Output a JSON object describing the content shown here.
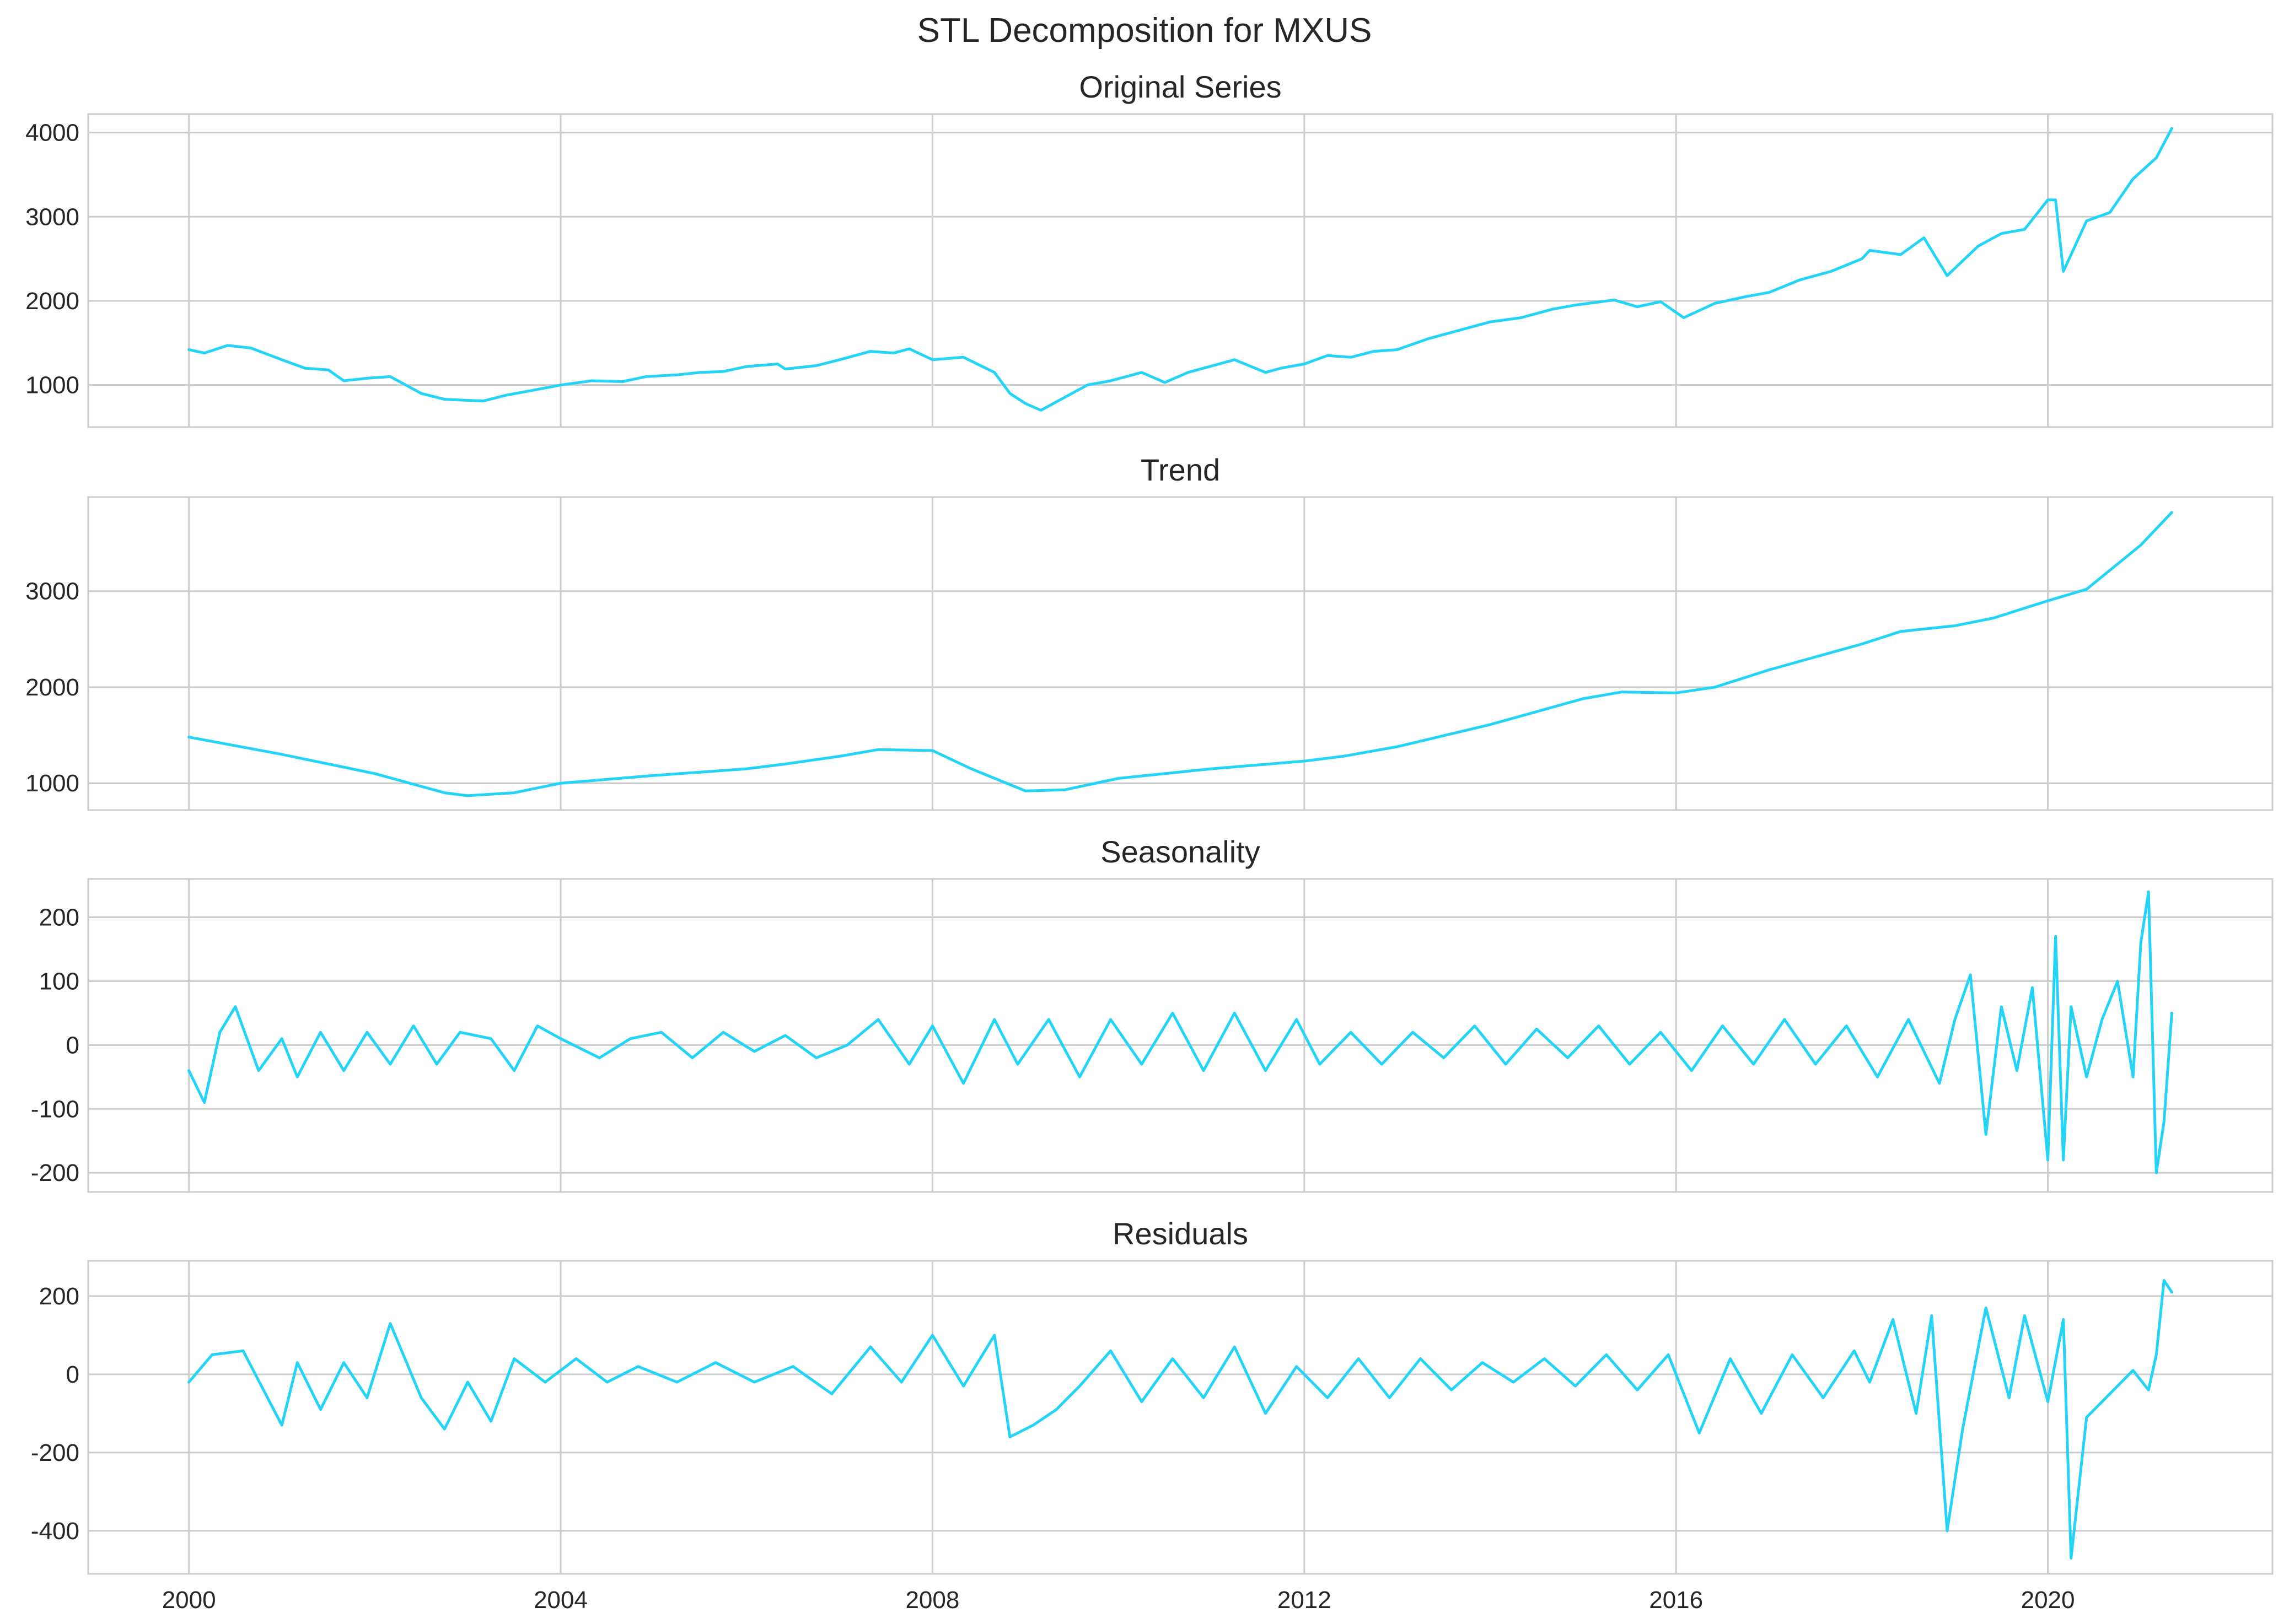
{
  "chart_data": {
    "type": "line",
    "title": "STL Decomposition for MXUS",
    "x_range": [
      "1998-12",
      "2022-06"
    ],
    "x_ticks": [
      "2000",
      "2004",
      "2008",
      "2012",
      "2016",
      "2020"
    ],
    "grid": true,
    "color": "#24d4f7",
    "panels": [
      {
        "name": "original",
        "title": "Original Series",
        "ylim": [
          500,
          4220
        ],
        "yticks": [
          1000,
          2000,
          3000,
          4000
        ],
        "x": [
          "2000-01",
          "2000-03",
          "2000-06",
          "2000-09",
          "2001-01",
          "2001-04",
          "2001-07",
          "2001-09",
          "2001-12",
          "2002-03",
          "2002-07",
          "2002-10",
          "2003-03",
          "2003-06",
          "2003-09",
          "2004-01",
          "2004-05",
          "2004-09",
          "2004-12",
          "2005-04",
          "2005-07",
          "2005-10",
          "2006-01",
          "2006-05",
          "2006-06",
          "2006-10",
          "2007-01",
          "2007-05",
          "2007-08",
          "2007-10",
          "2008-01",
          "2008-05",
          "2008-09",
          "2008-11",
          "2009-01",
          "2009-03",
          "2009-06",
          "2009-09",
          "2009-12",
          "2010-04",
          "2010-07",
          "2010-10",
          "2011-04",
          "2011-08",
          "2011-10",
          "2012-01",
          "2012-04",
          "2012-07",
          "2012-10",
          "2013-01",
          "2013-05",
          "2013-09",
          "2014-01",
          "2014-05",
          "2014-09",
          "2014-12",
          "2015-05",
          "2015-08",
          "2015-11",
          "2016-02",
          "2016-06",
          "2016-10",
          "2017-01",
          "2017-05",
          "2017-09",
          "2018-01",
          "2018-02",
          "2018-06",
          "2018-09",
          "2018-12",
          "2019-04",
          "2019-07",
          "2019-10",
          "2020-01",
          "2020-02",
          "2020-03",
          "2020-06",
          "2020-09",
          "2020-12",
          "2021-03",
          "2021-05"
        ],
        "y": [
          1420,
          1380,
          1470,
          1440,
          1300,
          1200,
          1180,
          1050,
          1080,
          1100,
          900,
          830,
          810,
          880,
          930,
          1000,
          1050,
          1040,
          1100,
          1120,
          1150,
          1160,
          1220,
          1250,
          1190,
          1230,
          1300,
          1400,
          1380,
          1430,
          1300,
          1330,
          1150,
          900,
          780,
          700,
          850,
          1000,
          1050,
          1150,
          1030,
          1150,
          1300,
          1150,
          1200,
          1250,
          1350,
          1330,
          1400,
          1420,
          1550,
          1650,
          1750,
          1800,
          1900,
          1950,
          2010,
          1930,
          1990,
          1800,
          1970,
          2050,
          2100,
          2250,
          2350,
          2500,
          2600,
          2550,
          2750,
          2300,
          2650,
          2800,
          2850,
          3200,
          3200,
          2350,
          2950,
          3050,
          3450,
          3700,
          4050
        ]
      },
      {
        "name": "trend",
        "title": "Trend",
        "ylim": [
          720,
          3980
        ],
        "yticks": [
          1000,
          2000,
          3000
        ],
        "x": [
          "2000-01",
          "2001-01",
          "2002-01",
          "2002-10",
          "2003-01",
          "2003-07",
          "2004-01",
          "2005-01",
          "2006-01",
          "2006-06",
          "2007-01",
          "2007-06",
          "2008-01",
          "2008-06",
          "2009-01",
          "2009-06",
          "2010-01",
          "2011-01",
          "2012-01",
          "2012-06",
          "2013-01",
          "2014-01",
          "2015-01",
          "2015-06",
          "2016-01",
          "2016-06",
          "2017-01",
          "2018-01",
          "2018-06",
          "2019-01",
          "2019-06",
          "2020-01",
          "2020-06",
          "2021-01",
          "2021-05"
        ],
        "y": [
          1480,
          1300,
          1100,
          900,
          870,
          900,
          1000,
          1080,
          1150,
          1200,
          1280,
          1350,
          1340,
          1150,
          920,
          930,
          1050,
          1150,
          1230,
          1280,
          1380,
          1610,
          1880,
          1950,
          1940,
          2000,
          2180,
          2450,
          2580,
          2640,
          2720,
          2900,
          3020,
          3480,
          3820
        ]
      },
      {
        "name": "seasonality",
        "title": "Seasonality",
        "ylim": [
          -230,
          260
        ],
        "yticks": [
          -200,
          -100,
          0,
          100,
          200
        ],
        "x": [
          "2000-01",
          "2000-03",
          "2000-05",
          "2000-07",
          "2000-10",
          "2001-01",
          "2001-03",
          "2001-06",
          "2001-09",
          "2001-12",
          "2002-03",
          "2002-06",
          "2002-09",
          "2002-12",
          "2003-04",
          "2003-07",
          "2003-10",
          "2004-01",
          "2004-06",
          "2004-10",
          "2005-02",
          "2005-06",
          "2005-10",
          "2006-02",
          "2006-06",
          "2006-10",
          "2007-02",
          "2007-06",
          "2007-10",
          "2008-01",
          "2008-05",
          "2008-09",
          "2008-12",
          "2009-04",
          "2009-08",
          "2009-12",
          "2010-04",
          "2010-08",
          "2010-12",
          "2011-04",
          "2011-08",
          "2011-12",
          "2012-03",
          "2012-07",
          "2012-11",
          "2013-03",
          "2013-07",
          "2013-11",
          "2014-03",
          "2014-07",
          "2014-11",
          "2015-03",
          "2015-07",
          "2015-11",
          "2016-03",
          "2016-07",
          "2016-11",
          "2017-03",
          "2017-07",
          "2017-11",
          "2018-03",
          "2018-07",
          "2018-11",
          "2019-01",
          "2019-03",
          "2019-05",
          "2019-07",
          "2019-09",
          "2019-11",
          "2020-01",
          "2020-02",
          "2020-03",
          "2020-04",
          "2020-06",
          "2020-08",
          "2020-10",
          "2020-12",
          "2021-01",
          "2021-02",
          "2021-03",
          "2021-04",
          "2021-05"
        ],
        "y": [
          -40,
          -90,
          20,
          60,
          -40,
          10,
          -50,
          20,
          -40,
          20,
          -30,
          30,
          -30,
          20,
          10,
          -40,
          30,
          10,
          -20,
          10,
          20,
          -20,
          20,
          -10,
          15,
          -20,
          0,
          40,
          -30,
          30,
          -60,
          40,
          -30,
          40,
          -50,
          40,
          -30,
          50,
          -40,
          50,
          -40,
          40,
          -30,
          20,
          -30,
          20,
          -20,
          30,
          -30,
          25,
          -20,
          30,
          -30,
          20,
          -40,
          30,
          -30,
          40,
          -30,
          30,
          -50,
          40,
          -60,
          40,
          110,
          -140,
          60,
          -40,
          90,
          -180,
          170,
          -180,
          60,
          -50,
          40,
          100,
          -50,
          160,
          240,
          -200,
          -120,
          50
        ]
      },
      {
        "name": "residuals",
        "title": "Residuals",
        "ylim": [
          -510,
          290
        ],
        "yticks": [
          -400,
          -200,
          0,
          200
        ],
        "x": [
          "2000-01",
          "2000-04",
          "2000-08",
          "2001-01",
          "2001-03",
          "2001-06",
          "2001-09",
          "2001-12",
          "2002-03",
          "2002-07",
          "2002-10",
          "2003-01",
          "2003-04",
          "2003-07",
          "2003-11",
          "2004-03",
          "2004-07",
          "2004-11",
          "2005-04",
          "2005-09",
          "2006-02",
          "2006-07",
          "2006-12",
          "2007-05",
          "2007-09",
          "2008-01",
          "2008-05",
          "2008-09",
          "2008-11",
          "2009-02",
          "2009-05",
          "2009-08",
          "2009-12",
          "2010-04",
          "2010-08",
          "2010-12",
          "2011-04",
          "2011-08",
          "2011-12",
          "2012-04",
          "2012-08",
          "2012-12",
          "2013-04",
          "2013-08",
          "2013-12",
          "2014-04",
          "2014-08",
          "2014-12",
          "2015-04",
          "2015-08",
          "2015-12",
          "2016-04",
          "2016-08",
          "2016-12",
          "2017-04",
          "2017-08",
          "2017-12",
          "2018-02",
          "2018-05",
          "2018-08",
          "2018-10",
          "2018-12",
          "2019-02",
          "2019-05",
          "2019-08",
          "2019-10",
          "2020-01",
          "2020-03",
          "2020-04",
          "2020-06",
          "2020-09",
          "2020-12",
          "2021-02",
          "2021-03",
          "2021-04",
          "2021-05"
        ],
        "y": [
          -20,
          50,
          60,
          -130,
          30,
          -90,
          30,
          -60,
          130,
          -60,
          -140,
          -20,
          -120,
          40,
          -20,
          40,
          -20,
          20,
          -20,
          30,
          -20,
          20,
          -50,
          70,
          -20,
          100,
          -30,
          100,
          -160,
          -130,
          -90,
          -30,
          60,
          -70,
          40,
          -60,
          70,
          -100,
          20,
          -60,
          40,
          -60,
          40,
          -40,
          30,
          -20,
          40,
          -30,
          50,
          -40,
          50,
          -150,
          40,
          -100,
          50,
          -60,
          60,
          -20,
          140,
          -100,
          150,
          -400,
          -140,
          170,
          -60,
          150,
          -70,
          140,
          -470,
          -110,
          -50,
          10,
          -40,
          50,
          240,
          210
        ]
      }
    ]
  }
}
